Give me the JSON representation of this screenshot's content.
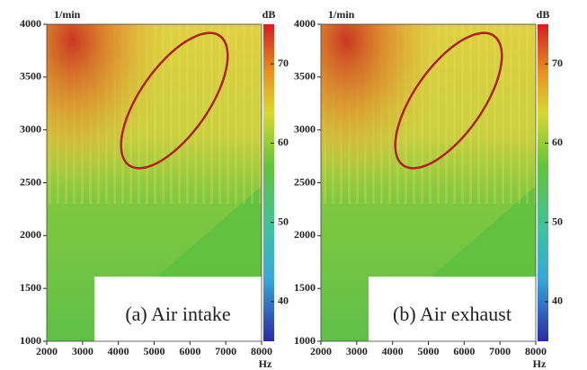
{
  "chart_data": [
    {
      "type": "heatmap",
      "annotation": "(a) Air intake",
      "xlabel": "Hz",
      "ylabel": "1/min",
      "colorbar_label": "dB",
      "xlim": [
        2000,
        8000
      ],
      "xticks": [
        2000,
        3000,
        4000,
        5000,
        6000,
        7000,
        8000
      ],
      "ylim": [
        1000,
        4000
      ],
      "yticks": [
        1000,
        1500,
        2000,
        2500,
        3000,
        3500,
        4000
      ],
      "clim": [
        35,
        75
      ],
      "cticks": [
        40,
        50,
        60,
        70
      ]
    },
    {
      "type": "heatmap",
      "annotation": "(b) Air exhaust",
      "xlabel": "Hz",
      "ylabel": "1/min",
      "colorbar_label": "dB",
      "xlim": [
        2000,
        8000
      ],
      "xticks": [
        2000,
        3000,
        4000,
        5000,
        6000,
        7000,
        8000
      ],
      "ylim": [
        1000,
        4000
      ],
      "yticks": [
        1000,
        1500,
        2000,
        2500,
        3000,
        3500,
        4000
      ],
      "clim": [
        35,
        75
      ],
      "cticks": [
        40,
        50,
        60,
        70
      ]
    }
  ]
}
